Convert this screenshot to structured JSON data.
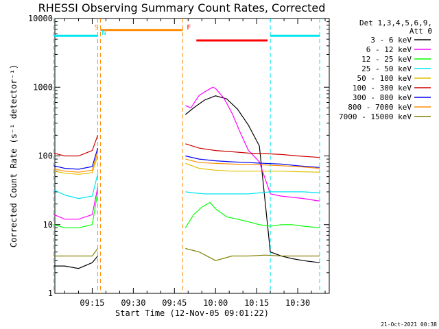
{
  "chart_data": {
    "type": "line",
    "title": "RHESSI Observing Summary Count Rates, Corrected",
    "xlabel": "Start Time (12-Nov-05 09:01:22)",
    "ylabel": "Corrected Count Rate (s⁻¹ detector⁻¹)",
    "yscale": "log",
    "ylim": [
      1,
      10000
    ],
    "y_ticks": [
      "1",
      "10",
      "100",
      "1000",
      "10000"
    ],
    "xlim": [
      "09:01:22",
      "10:41:30"
    ],
    "x_ticks": [
      "09:15",
      "09:30",
      "09:45",
      "10:00",
      "10:15",
      "10:30"
    ],
    "grid": false,
    "legend_position": "top-right",
    "legend_header": [
      "Det 1,3,4,5,6,9,",
      "Att 0"
    ],
    "footer": "21-Oct-2021 00:38",
    "markers": [
      {
        "label": "S",
        "time": "09:18",
        "color": "#ff8c00"
      },
      {
        "label": "N",
        "time": "09:18",
        "color": "#00e5ee"
      },
      {
        "label": "F",
        "time": "09:49",
        "color": "#ff0000"
      }
    ],
    "flags": [
      {
        "name": "eclipse",
        "color": "#00e5ee",
        "segments": [
          [
            "09:01",
            "09:17"
          ],
          [
            "10:20",
            "10:38"
          ]
        ],
        "level": 5600
      },
      {
        "name": "SAA",
        "color": "#ff8c00",
        "segments": [
          [
            "09:18",
            "09:48"
          ]
        ],
        "level": 6800
      },
      {
        "name": "flare",
        "color": "#ff0000",
        "segments": [
          [
            "09:53",
            "10:19"
          ]
        ],
        "level": 4800
      }
    ],
    "interval_lines": [
      {
        "time": "09:01",
        "color": "#00e5ee"
      },
      {
        "time": "09:17",
        "color": "#00e5ee"
      },
      {
        "time": "09:18",
        "color": "#ff8c00"
      },
      {
        "time": "09:48",
        "color": "#ff8c00"
      },
      {
        "time": "10:20",
        "color": "#00e5ee"
      },
      {
        "time": "10:38",
        "color": "#00e5ee"
      }
    ],
    "series": [
      {
        "name": "3 - 6 keV",
        "color": "#000000",
        "x": [
          "09:01",
          "09:05",
          "09:10",
          "09:15",
          "09:17",
          "09:49",
          "09:52",
          "09:56",
          "10:00",
          "10:04",
          "10:08",
          "10:12",
          "10:16",
          "10:20",
          "10:24",
          "10:28",
          "10:32",
          "10:38"
        ],
        "y": [
          2.5,
          2.5,
          2.3,
          2.8,
          3.5,
          400,
          500,
          650,
          750,
          680,
          480,
          280,
          140,
          4,
          3.5,
          3.2,
          3.0,
          2.8
        ]
      },
      {
        "name": "6 - 12 keV",
        "color": "#ff00ff",
        "x": [
          "09:01",
          "09:05",
          "09:10",
          "09:15",
          "09:17",
          "09:49",
          "09:51",
          "09:54",
          "09:57",
          "09:59",
          "10:00",
          "10:03",
          "10:06",
          "10:09",
          "10:12",
          "10:16",
          "10:20",
          "10:24",
          "10:28",
          "10:32",
          "10:38"
        ],
        "y": [
          14,
          12,
          12,
          14,
          35,
          540,
          500,
          760,
          900,
          1000,
          960,
          700,
          420,
          220,
          120,
          82,
          28,
          26,
          25,
          24,
          22
        ]
      },
      {
        "name": "12 - 25 keV",
        "color": "#00ff00",
        "x": [
          "09:01",
          "09:05",
          "09:10",
          "09:15",
          "09:17",
          "09:49",
          "09:52",
          "09:55",
          "09:58",
          "10:00",
          "10:04",
          "10:08",
          "10:12",
          "10:16",
          "10:20",
          "10:24",
          "10:28",
          "10:32",
          "10:38"
        ],
        "y": [
          10,
          9,
          9,
          10,
          30,
          9,
          14,
          18,
          21,
          17,
          13,
          12,
          11,
          10,
          9.5,
          10,
          10,
          9.5,
          9
        ]
      },
      {
        "name": "25 - 50 keV",
        "color": "#00e5ee",
        "x": [
          "09:01",
          "09:05",
          "09:10",
          "09:15",
          "09:17",
          "09:49",
          "09:52",
          "09:56",
          "10:00",
          "10:04",
          "10:08",
          "10:12",
          "10:16",
          "10:20",
          "10:24",
          "10:28",
          "10:32",
          "10:38"
        ],
        "y": [
          32,
          27,
          24,
          26,
          55,
          30,
          29,
          28,
          28,
          28,
          28,
          28,
          29,
          30,
          30,
          30,
          30,
          29
        ]
      },
      {
        "name": "50 - 100 keV",
        "color": "#e0c000",
        "x": [
          "09:01",
          "09:05",
          "09:10",
          "09:15",
          "09:17",
          "09:49",
          "09:54",
          "10:00",
          "10:06",
          "10:12",
          "10:18",
          "10:24",
          "10:30",
          "10:38"
        ],
        "y": [
          60,
          56,
          54,
          57,
          100,
          78,
          66,
          62,
          60,
          60,
          60,
          60,
          59,
          58
        ]
      },
      {
        "name": "100 - 300 keV",
        "color": "#cc0000",
        "x": [
          "09:01",
          "09:05",
          "09:10",
          "09:15",
          "09:17",
          "09:49",
          "09:54",
          "10:00",
          "10:06",
          "10:12",
          "10:18",
          "10:24",
          "10:30",
          "10:38"
        ],
        "y": [
          110,
          100,
          100,
          120,
          200,
          150,
          130,
          120,
          115,
          110,
          108,
          105,
          100,
          95
        ]
      },
      {
        "name": "300 - 800 keV",
        "color": "#0000ee",
        "x": [
          "09:01",
          "09:05",
          "09:10",
          "09:15",
          "09:17",
          "09:49",
          "09:54",
          "10:00",
          "10:06",
          "10:12",
          "10:18",
          "10:24",
          "10:30",
          "10:38"
        ],
        "y": [
          72,
          66,
          64,
          70,
          130,
          100,
          90,
          85,
          82,
          80,
          78,
          76,
          72,
          68
        ]
      },
      {
        "name": "800 - 7000 keV",
        "color": "#ff8c00",
        "x": [
          "09:01",
          "09:05",
          "09:10",
          "09:15",
          "09:17",
          "09:49",
          "09:54",
          "10:00",
          "10:06",
          "10:12",
          "10:18",
          "10:24",
          "10:30",
          "10:38"
        ],
        "y": [
          65,
          60,
          58,
          62,
          115,
          90,
          80,
          78,
          76,
          75,
          74,
          72,
          70,
          66
        ]
      },
      {
        "name": "7000 - 15000 keV",
        "color": "#808000",
        "x": [
          "09:01",
          "09:05",
          "09:10",
          "09:15",
          "09:17",
          "09:49",
          "09:54",
          "10:00",
          "10:06",
          "10:12",
          "10:18",
          "10:24",
          "10:30",
          "10:38"
        ],
        "y": [
          3.5,
          3.5,
          3.5,
          3.5,
          4.5,
          4.5,
          4,
          3,
          3.5,
          3.5,
          3.6,
          3.5,
          3.5,
          3.5
        ]
      }
    ]
  }
}
